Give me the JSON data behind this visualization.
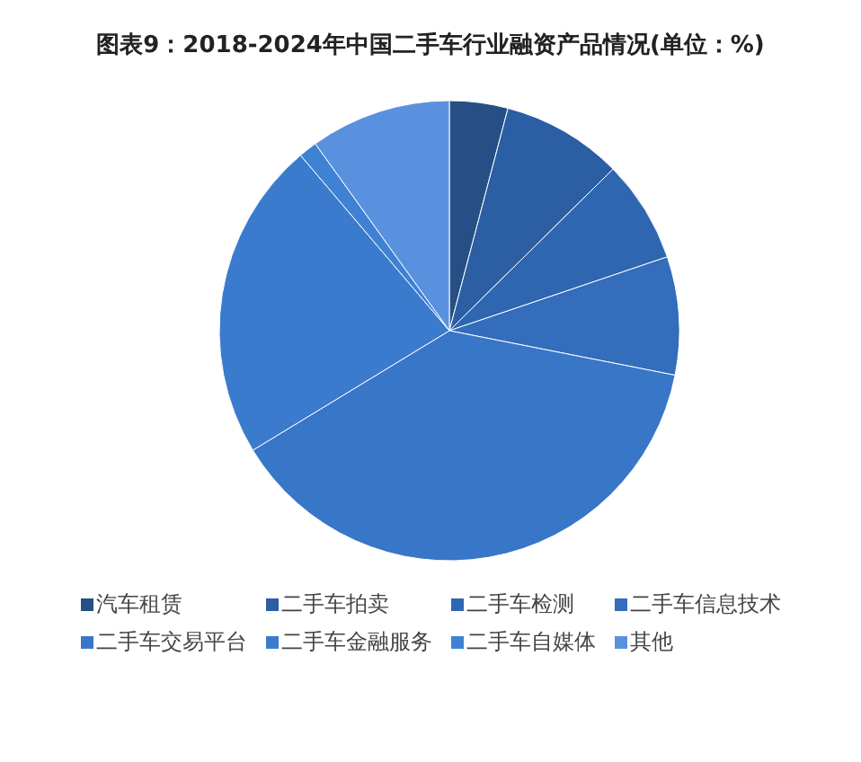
{
  "chart_data": {
    "type": "pie",
    "title": "图表9：2018-2024年中国二手车行业融资产品情况(单位：%)",
    "categories": [
      "汽车租赁",
      "二手车拍卖",
      "二手车检测",
      "二手车信息技术",
      "二手车交易平台",
      "二手车金融服务",
      "二手车自媒体",
      "其他"
    ],
    "values": [
      4.1,
      8.5,
      7.2,
      8.3,
      38.2,
      22.5,
      1.3,
      9.9
    ],
    "colors": [
      "#264f86",
      "#2b5ea3",
      "#2f66b0",
      "#336dbb",
      "#3876c8",
      "#3b7bcd",
      "#3f82d4",
      "#5a91de"
    ],
    "legend": "bottom"
  }
}
